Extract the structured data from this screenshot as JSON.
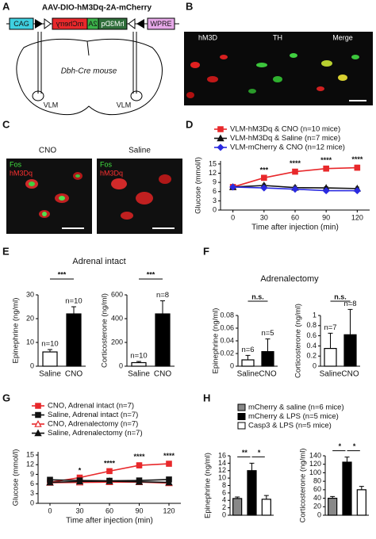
{
  "panel_labels": [
    "A",
    "B",
    "C",
    "D",
    "E",
    "F",
    "G",
    "H"
  ],
  "diagram": {
    "title": "AAV-DIO-hM3Dq-2A-mCherry",
    "elements": [
      "CAG",
      "mCherry",
      "2A",
      "hM3Dq",
      "WPRE"
    ],
    "mouse": "Dbh-Cre mouse",
    "regions": [
      "VLM",
      "VLM"
    ]
  },
  "images": {
    "B": [
      "hM3D",
      "TH",
      "Merge"
    ],
    "C": {
      "conditions": [
        "CNO",
        "Saline"
      ],
      "stains": [
        [
          "Fos",
          "hM3Dq"
        ],
        [
          "Fos",
          "hM3Dq"
        ]
      ]
    }
  },
  "panel_titles": {
    "E": "Adrenal intact",
    "F": "Adrenalectomy"
  },
  "chart_data": [
    {
      "type": "line",
      "x": [
        0,
        30,
        60,
        90,
        120
      ],
      "xlim": [
        -12,
        132
      ],
      "xticks": [
        0,
        30,
        60,
        90,
        120
      ],
      "ylim": [
        0,
        16
      ],
      "yticks": [
        0,
        3,
        6,
        9,
        12,
        15
      ],
      "xlabel": "Time after injection (min)",
      "ylabel": "Glucose (mmol/l)",
      "series": [
        {
          "name": "VLM-hM3Dq & CNO (n=10 mice)",
          "color": "#e8282b",
          "marker": "square",
          "filled": true,
          "values": [
            7.5,
            10.5,
            12.5,
            13.5,
            13.8
          ],
          "errors": [
            0.3,
            0.6,
            0.7,
            0.8,
            0.8
          ]
        },
        {
          "name": "VLM-hM3Dq & Saline (n=7 mice)",
          "color": "#111111",
          "marker": "triangle",
          "filled": true,
          "values": [
            7.5,
            8.0,
            7.3,
            7.2,
            7.0
          ],
          "errors": [
            0.3,
            0.5,
            0.5,
            0.4,
            0.5
          ]
        },
        {
          "name": "VLM-mCherry & CNO (n=12 mice)",
          "color": "#2a2ae0",
          "marker": "diamond",
          "filled": true,
          "values": [
            7.5,
            7.2,
            6.8,
            6.3,
            6.3
          ],
          "errors": [
            0.3,
            0.4,
            0.4,
            0.5,
            0.4
          ]
        }
      ],
      "stars": [
        null,
        "***",
        "****",
        "****",
        "****"
      ]
    },
    {
      "type": "bar",
      "categories": [
        "Saline",
        "CNO"
      ],
      "values": [
        6,
        22
      ],
      "errors": [
        1,
        3
      ],
      "colors": [
        "#ffffff",
        "#000000"
      ],
      "ylim": [
        0,
        30
      ],
      "yticks": [
        0,
        10,
        20,
        30
      ],
      "ylabel": "Epinephrine (ng/ml)",
      "n_labels": [
        "n=10",
        "n=10"
      ],
      "significance": [
        "***"
      ]
    },
    {
      "type": "bar",
      "categories": [
        "Saline",
        "CNO"
      ],
      "values": [
        30,
        440
      ],
      "errors": [
        10,
        110
      ],
      "colors": [
        "#ffffff",
        "#000000"
      ],
      "ylim": [
        0,
        600
      ],
      "yticks": [
        0,
        200,
        400,
        600
      ],
      "ylabel": "Corticosterone (ng/ml)",
      "n_labels": [
        "n=10",
        "n=8"
      ],
      "significance": [
        "***"
      ]
    },
    {
      "type": "bar",
      "categories": [
        "Saline",
        "CNO"
      ],
      "values": [
        0.01,
        0.023
      ],
      "errors": [
        0.007,
        0.02
      ],
      "colors": [
        "#ffffff",
        "#000000"
      ],
      "ylim": [
        0,
        0.08
      ],
      "yticks": [
        0,
        0.02,
        0.04,
        0.06,
        0.08
      ],
      "ylabel": "Epinephrine (ng/ml)",
      "n_labels": [
        "n=6",
        "n=5"
      ],
      "significance": [
        "n.s."
      ]
    },
    {
      "type": "bar",
      "categories": [
        "Saline",
        "CNO"
      ],
      "values": [
        0.35,
        0.62
      ],
      "errors": [
        0.3,
        0.5
      ],
      "colors": [
        "#ffffff",
        "#000000"
      ],
      "ylim": [
        0,
        1
      ],
      "yticks": [
        0,
        0.2,
        0.4,
        0.6,
        0.8,
        1
      ],
      "ylabel": "Corticosterone (ng/ml)",
      "n_labels": [
        "n=7",
        "n=8"
      ],
      "significance": [
        "n.s."
      ]
    },
    {
      "type": "line",
      "x": [
        0,
        30,
        60,
        90,
        120
      ],
      "xlim": [
        -12,
        132
      ],
      "xticks": [
        0,
        30,
        60,
        90,
        120
      ],
      "ylim": [
        0,
        16
      ],
      "yticks": [
        0,
        3,
        6,
        9,
        12,
        15
      ],
      "xlabel": "Time after injection (min)",
      "ylabel": "Glucose (mmol/l)",
      "series": [
        {
          "name": "CNO, Adrenal intact (n=7)",
          "color": "#e8282b",
          "marker": "square",
          "filled": true,
          "values": [
            6.5,
            8.0,
            10.0,
            11.8,
            12.3
          ],
          "errors": [
            0.3,
            0.4,
            0.5,
            0.8,
            0.6
          ]
        },
        {
          "name": "Saline, Adrenal intact (n=7)",
          "color": "#111111",
          "marker": "square",
          "filled": true,
          "values": [
            7.3,
            7.1,
            7.0,
            7.1,
            7.4
          ],
          "errors": [
            0.3,
            0.3,
            0.3,
            0.3,
            0.3
          ]
        },
        {
          "name": "CNO, Adrenalectomy (n=7)",
          "color": "#e8282b",
          "marker": "triangle",
          "filled": false,
          "values": [
            6.4,
            6.5,
            6.6,
            6.6,
            6.3
          ],
          "errors": [
            0.3,
            0.3,
            0.3,
            0.3,
            0.3
          ]
        },
        {
          "name": "Saline, Adrenalectomy (n=7)",
          "color": "#111111",
          "marker": "triangle",
          "filled": true,
          "values": [
            6.5,
            6.8,
            6.9,
            6.7,
            6.5
          ],
          "errors": [
            0.3,
            0.3,
            0.3,
            0.3,
            0.3
          ]
        }
      ],
      "stars": [
        null,
        "*",
        "****",
        "****",
        "****"
      ]
    },
    {
      "type": "bar",
      "values": [
        4.5,
        12,
        4.3
      ],
      "errors": [
        0.4,
        2,
        1
      ],
      "colors": [
        "#888888",
        "#000000",
        "#ffffff"
      ],
      "ylim": [
        0,
        16
      ],
      "yticks": [
        0,
        2,
        4,
        6,
        8,
        10,
        12,
        14,
        16
      ],
      "ylabel": "Epinephrine (ng/ml)",
      "significance": [
        "**",
        "*"
      ],
      "legend": [
        "mCherry & saline (n=6 mice)",
        "mCherry & LPS (n=5 mice)",
        "Casp3 & LPS (n=5 mice)"
      ]
    },
    {
      "type": "bar",
      "values": [
        40,
        125,
        60
      ],
      "errors": [
        4,
        12,
        8
      ],
      "colors": [
        "#888888",
        "#000000",
        "#ffffff"
      ],
      "ylim": [
        0,
        140
      ],
      "yticks": [
        0,
        20,
        40,
        60,
        80,
        100,
        120,
        140
      ],
      "ylabel": "Corticosterone (ng/ml)",
      "significance": [
        "*",
        "*"
      ]
    }
  ]
}
